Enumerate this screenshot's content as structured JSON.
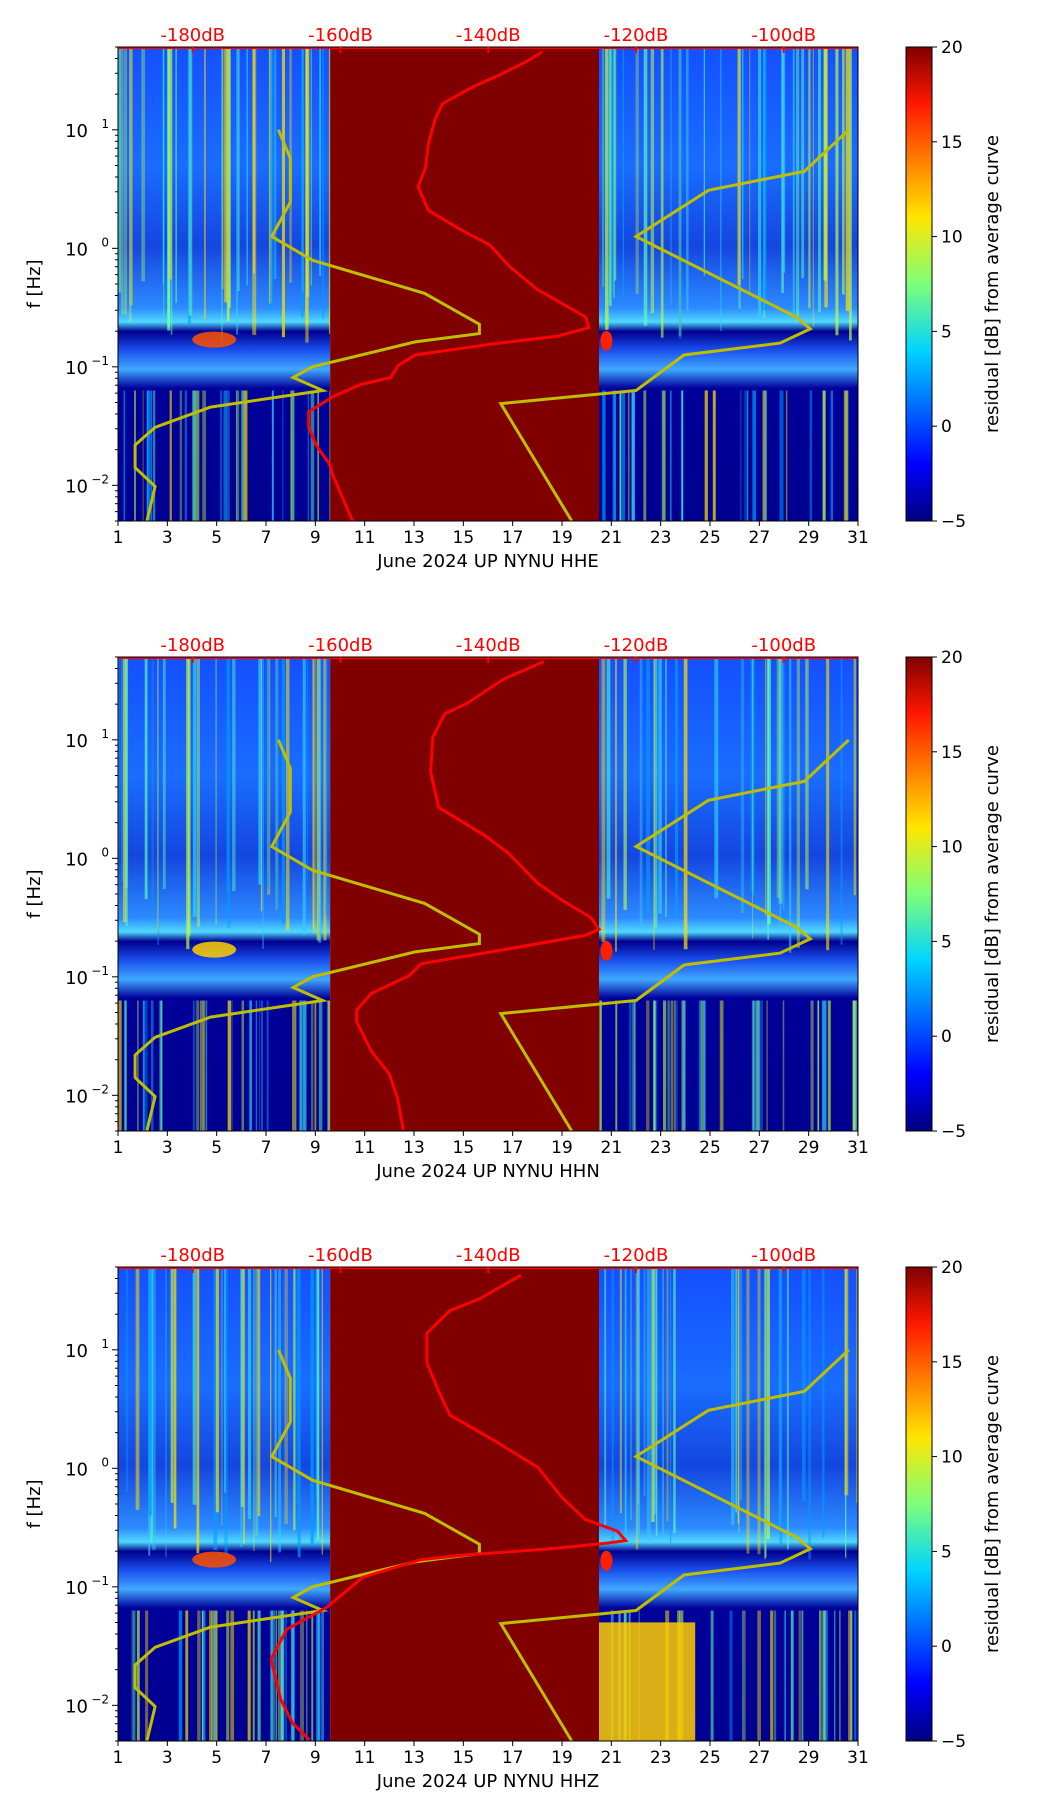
{
  "chart_data": [
    {
      "type": "heatmap",
      "title": "June 2024 UP NYNU  HHE",
      "xlabel": "June 2024 UP NYNU  HHE",
      "ylabel": "f [Hz]",
      "xlim": [
        1,
        31
      ],
      "ylim": [
        0.005,
        50
      ],
      "yscale": "log",
      "x_ticks": [
        "1",
        "3",
        "5",
        "7",
        "9",
        "11",
        "13",
        "15",
        "17",
        "19",
        "21",
        "23",
        "25",
        "27",
        "29",
        "31"
      ],
      "y_ticks": [
        {
          "base": "10",
          "exp": "1"
        },
        {
          "base": "10",
          "exp": "0"
        },
        {
          "base": "10",
          "exp": "−1"
        },
        {
          "base": "10",
          "exp": "−2"
        }
      ],
      "top_axis_ticks": [
        "-180dB",
        "-160dB",
        "-140dB",
        "-120dB",
        "-100dB"
      ],
      "colorbar": {
        "label": "residual [dB] from average curve",
        "range": [
          -5,
          20
        ],
        "ticks": [
          "20",
          "15",
          "10",
          "5",
          "0",
          "−5"
        ]
      },
      "data_gap_days": [
        9.6,
        20.5
      ],
      "red_curve_median_psd": {
        "db": [
          -158.3,
          -161.0,
          -161.5,
          -163.3,
          -164.3,
          -164.3,
          -161.0,
          -157.3,
          -153.2,
          -152.2,
          -149.9,
          -139.8,
          -130.5,
          -126.4,
          -126.8,
          -129.6,
          -133.3,
          -137.0,
          -139.8,
          -143.5,
          -148.1,
          -149.5,
          -148.5,
          -148.1,
          -147.2,
          -146.2,
          -142.5,
          -137.9,
          -134.7,
          -132.7
        ],
        "log10_f": [
          -2.31,
          -1.92,
          -1.82,
          -1.66,
          -1.51,
          -1.38,
          -1.25,
          -1.15,
          -1.09,
          -0.99,
          -0.9,
          -0.81,
          -0.74,
          -0.67,
          -0.58,
          -0.48,
          -0.35,
          -0.16,
          0.03,
          0.15,
          0.32,
          0.52,
          0.68,
          0.88,
          1.09,
          1.22,
          1.35,
          1.48,
          1.58,
          1.66
        ]
      }
    },
    {
      "type": "heatmap",
      "title": "June 2024 UP NYNU  HHN",
      "xlabel": "June 2024 UP NYNU  HHN",
      "ylabel": "f [Hz]",
      "xlim": [
        1,
        31
      ],
      "ylim": [
        0.005,
        50
      ],
      "yscale": "log",
      "x_ticks": [
        "1",
        "3",
        "5",
        "7",
        "9",
        "11",
        "13",
        "15",
        "17",
        "19",
        "21",
        "23",
        "25",
        "27",
        "29",
        "31"
      ],
      "y_ticks": [
        {
          "base": "10",
          "exp": "1"
        },
        {
          "base": "10",
          "exp": "0"
        },
        {
          "base": "10",
          "exp": "−1"
        },
        {
          "base": "10",
          "exp": "−2"
        }
      ],
      "top_axis_ticks": [
        "-180dB",
        "-160dB",
        "-140dB",
        "-120dB",
        "-100dB"
      ],
      "colorbar": {
        "label": "residual [dB] from average curve",
        "range": [
          -5,
          20
        ],
        "ticks": [
          "20",
          "15",
          "10",
          "5",
          "0",
          "−5"
        ]
      },
      "data_gap_days": [
        9.6,
        20.5
      ],
      "red_curve_median_psd": {
        "db": [
          -151.5,
          -152.3,
          -153.4,
          -155.8,
          -157.8,
          -157.8,
          -155.8,
          -150.7,
          -149.1,
          -139.6,
          -126.9,
          -125.0,
          -126.1,
          -130.1,
          -133.3,
          -137.2,
          -140.4,
          -146.7,
          -147.8,
          -147.5,
          -145.9,
          -142.8,
          -138.0,
          -132.5
        ],
        "log10_f": [
          -2.29,
          -2.02,
          -1.82,
          -1.63,
          -1.38,
          -1.28,
          -1.14,
          -0.99,
          -0.89,
          -0.79,
          -0.65,
          -0.6,
          -0.5,
          -0.35,
          -0.21,
          0.04,
          0.19,
          0.43,
          0.73,
          1.02,
          1.22,
          1.31,
          1.51,
          1.66
        ]
      }
    },
    {
      "type": "heatmap",
      "title": "June 2024 UP NYNU  HHZ",
      "xlabel": "June 2024 UP NYNU  HHZ",
      "ylabel": "f [Hz]",
      "xlim": [
        1,
        31
      ],
      "ylim": [
        0.005,
        50
      ],
      "yscale": "log",
      "x_ticks": [
        "1",
        "3",
        "5",
        "7",
        "9",
        "11",
        "13",
        "15",
        "17",
        "19",
        "21",
        "23",
        "25",
        "27",
        "29",
        "31"
      ],
      "y_ticks": [
        {
          "base": "10",
          "exp": "1"
        },
        {
          "base": "10",
          "exp": "0"
        },
        {
          "base": "10",
          "exp": "−1"
        },
        {
          "base": "10",
          "exp": "−2"
        }
      ],
      "top_axis_ticks": [
        "-180dB",
        "-160dB",
        "-140dB",
        "-120dB",
        "-100dB"
      ],
      "colorbar": {
        "label": "residual [dB] from average curve",
        "range": [
          -5,
          20
        ],
        "ticks": [
          "20",
          "15",
          "10",
          "5",
          "0",
          "−5"
        ]
      },
      "data_gap_days": [
        9.6,
        20.5
      ],
      "red_curve_median_psd": {
        "db": [
          -164.2,
          -166.5,
          -168.1,
          -169.4,
          -167.3,
          -161.8,
          -157.0,
          -149.1,
          -142.8,
          -131.7,
          -123.8,
          -121.4,
          -122.5,
          -126.9,
          -130.1,
          -133.3,
          -139.6,
          -145.2,
          -146.7,
          -148.3,
          -148.3,
          -145.2,
          -141.2,
          -135.6
        ],
        "log10_f": [
          -2.29,
          -2.15,
          -1.95,
          -1.61,
          -1.36,
          -1.17,
          -0.92,
          -0.77,
          -0.73,
          -0.68,
          -0.63,
          -0.61,
          -0.53,
          -0.43,
          -0.24,
          0.01,
          0.25,
          0.45,
          0.65,
          0.89,
          1.14,
          1.33,
          1.43,
          1.63
        ]
      }
    }
  ],
  "noise_models": {
    "low_noise_model": {
      "db": [
        -168.4,
        -166.8,
        -166.8,
        -169.3,
        -163.8,
        -148.6,
        -141.2,
        -141.2,
        -149.9,
        -163.8,
        -166.4,
        -162.4,
        -177.6,
        -185.1,
        -187.8,
        -187.8,
        -185.1,
        -186.2
      ],
      "log10_f": [
        1.0,
        0.76,
        0.39,
        0.1,
        -0.1,
        -0.38,
        -0.64,
        -0.72,
        -0.79,
        -1.0,
        -1.09,
        -1.2,
        -1.34,
        -1.51,
        -1.66,
        -1.85,
        -2.01,
        -2.3
      ]
    },
    "high_noise_model": {
      "db": [
        -128.7,
        -138.3,
        -120.0,
        -113.5,
        -100.5,
        -96.4,
        -98.3,
        -120.0,
        -110.2,
        -97.2,
        -91.2
      ],
      "log10_f": [
        -2.3,
        -1.31,
        -1.2,
        -0.9,
        -0.8,
        -0.68,
        -0.58,
        0.1,
        0.49,
        0.65,
        1.0
      ]
    }
  },
  "colors": {
    "psd_curve": "#ff0000",
    "noise_model": "#bfbf00",
    "gap": "#800000"
  }
}
